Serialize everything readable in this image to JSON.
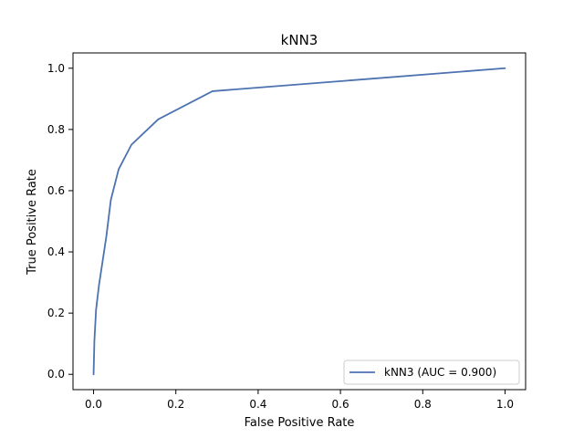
{
  "chart_data": {
    "type": "line",
    "title": "kNN3",
    "xlabel": "False Positive Rate",
    "ylabel": "True Positive Rate",
    "xlim": [
      -0.05,
      1.05
    ],
    "ylim": [
      -0.05,
      1.05
    ],
    "xticks": [
      0.0,
      0.2,
      0.4,
      0.6,
      0.8,
      1.0
    ],
    "yticks": [
      0.0,
      0.2,
      0.4,
      0.6,
      0.8,
      1.0
    ],
    "xtick_labels": [
      "0.0",
      "0.2",
      "0.4",
      "0.6",
      "0.8",
      "1.0"
    ],
    "ytick_labels": [
      "0.0",
      "0.2",
      "0.4",
      "0.6",
      "0.8",
      "1.0"
    ],
    "grid": false,
    "legend_position": "lower-right",
    "series": [
      {
        "name": "kNN3 (AUC = 0.900)",
        "color": "#4c72b0",
        "x": [
          0.0,
          0.002,
          0.006,
          0.013,
          0.022,
          0.031,
          0.042,
          0.061,
          0.092,
          0.157,
          0.289,
          1.0
        ],
        "y": [
          0.0,
          0.11,
          0.21,
          0.29,
          0.37,
          0.45,
          0.57,
          0.67,
          0.75,
          0.833,
          0.925,
          1.0
        ]
      }
    ]
  }
}
